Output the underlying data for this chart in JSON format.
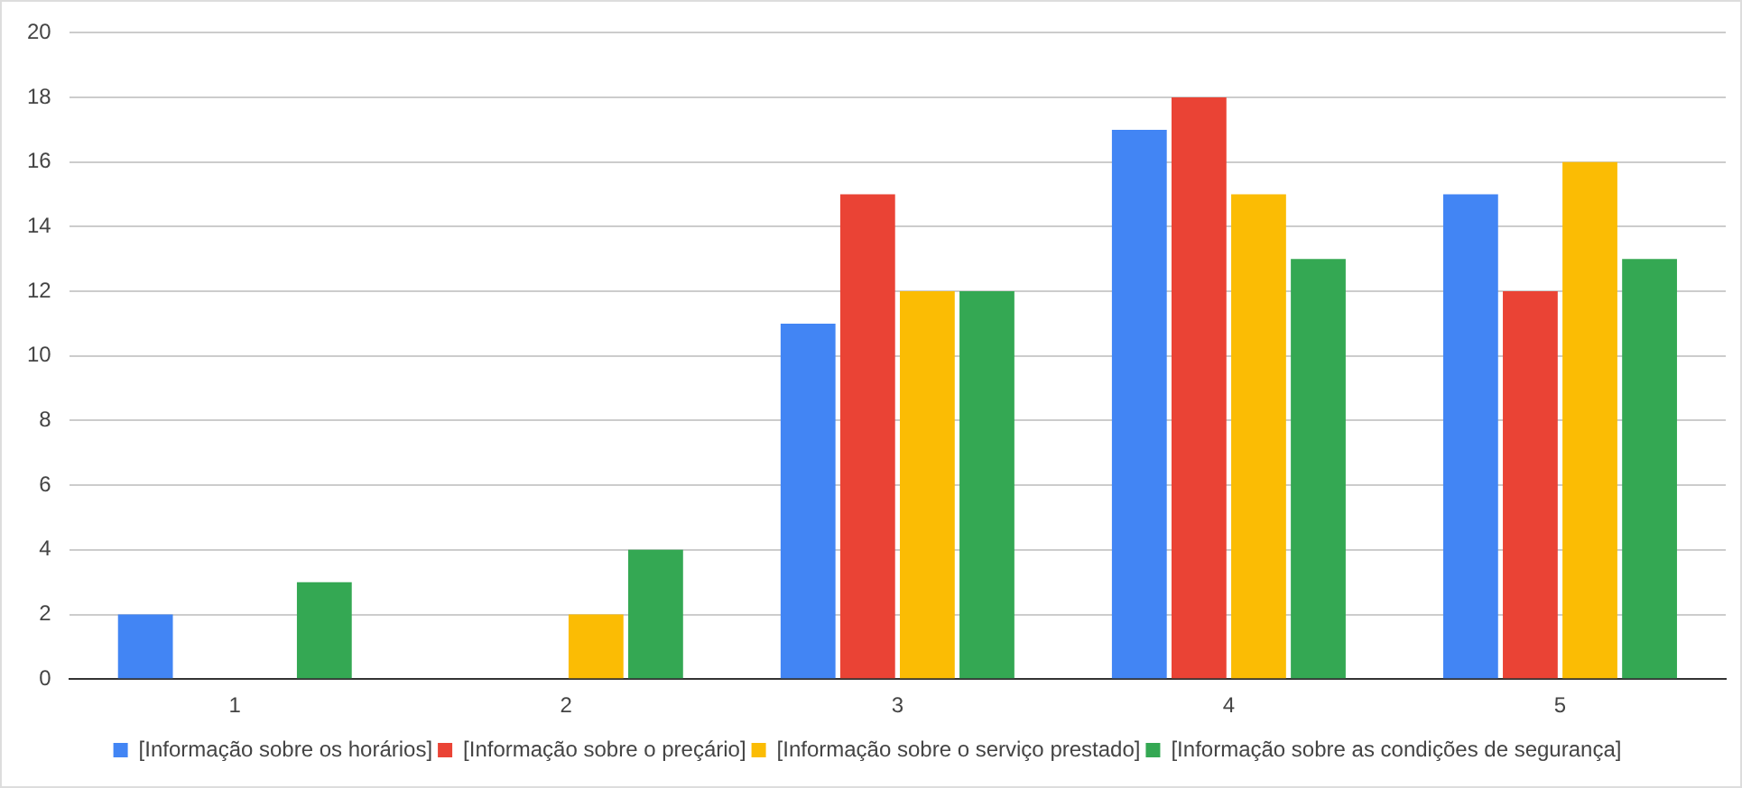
{
  "chart_data": {
    "type": "bar",
    "categories": [
      "1",
      "2",
      "3",
      "4",
      "5"
    ],
    "series": [
      {
        "name": "[Informação sobre os horários]",
        "color": "#4285f4",
        "values": [
          2,
          0,
          11,
          17,
          15
        ]
      },
      {
        "name": "[Informação sobre o preçário]",
        "color": "#ea4335",
        "values": [
          0,
          0,
          15,
          18,
          12
        ]
      },
      {
        "name": "[Informação sobre o serviço prestado]",
        "color": "#fbbc04",
        "values": [
          0,
          2,
          12,
          15,
          16
        ]
      },
      {
        "name": "[Informação sobre as condições de segurança]",
        "color": "#34a853",
        "values": [
          3,
          4,
          12,
          13,
          13
        ]
      }
    ],
    "ylim": [
      0,
      20
    ],
    "yticks": [
      0,
      2,
      4,
      6,
      8,
      10,
      12,
      14,
      16,
      18,
      20
    ],
    "grid": "y",
    "legend": "bottom"
  }
}
